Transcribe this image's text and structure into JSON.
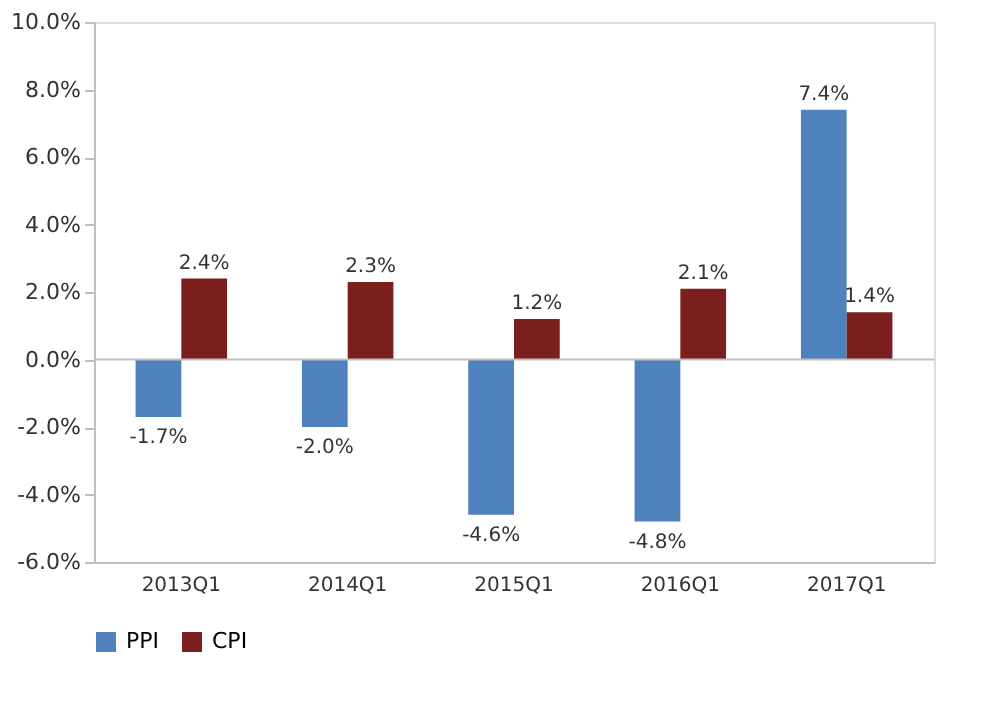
{
  "chart_data": {
    "type": "bar",
    "categories": [
      "2013Q1",
      "2014Q1",
      "2015Q1",
      "2016Q1",
      "2017Q1"
    ],
    "series": [
      {
        "name": "PPI",
        "color": "#4f81bd",
        "values": [
          -1.7,
          -2.0,
          -4.6,
          -4.8,
          7.4
        ],
        "value_labels": [
          "-1.7%",
          "-2.0%",
          "-4.6%",
          "-4.8%",
          "7.4%"
        ]
      },
      {
        "name": "CPI",
        "color": "#7b1f1f",
        "values": [
          2.4,
          2.3,
          1.2,
          2.1,
          1.4
        ],
        "value_labels": [
          "2.4%",
          "2.3%",
          "1.2%",
          "2.1%",
          "1.4%"
        ]
      }
    ],
    "ylim": [
      -6,
      10
    ],
    "yticks": [
      {
        "value": -6,
        "label": "-6.0%"
      },
      {
        "value": -4,
        "label": "-4.0%"
      },
      {
        "value": -2,
        "label": "-2.0%"
      },
      {
        "value": 0,
        "label": "0.0%"
      },
      {
        "value": 2,
        "label": "2.0%"
      },
      {
        "value": 4,
        "label": "4.0%"
      },
      {
        "value": 6,
        "label": "6.0%"
      },
      {
        "value": 8,
        "label": "8.0%"
      },
      {
        "value": 10,
        "label": "10.0%"
      }
    ],
    "legend": "bottom"
  }
}
